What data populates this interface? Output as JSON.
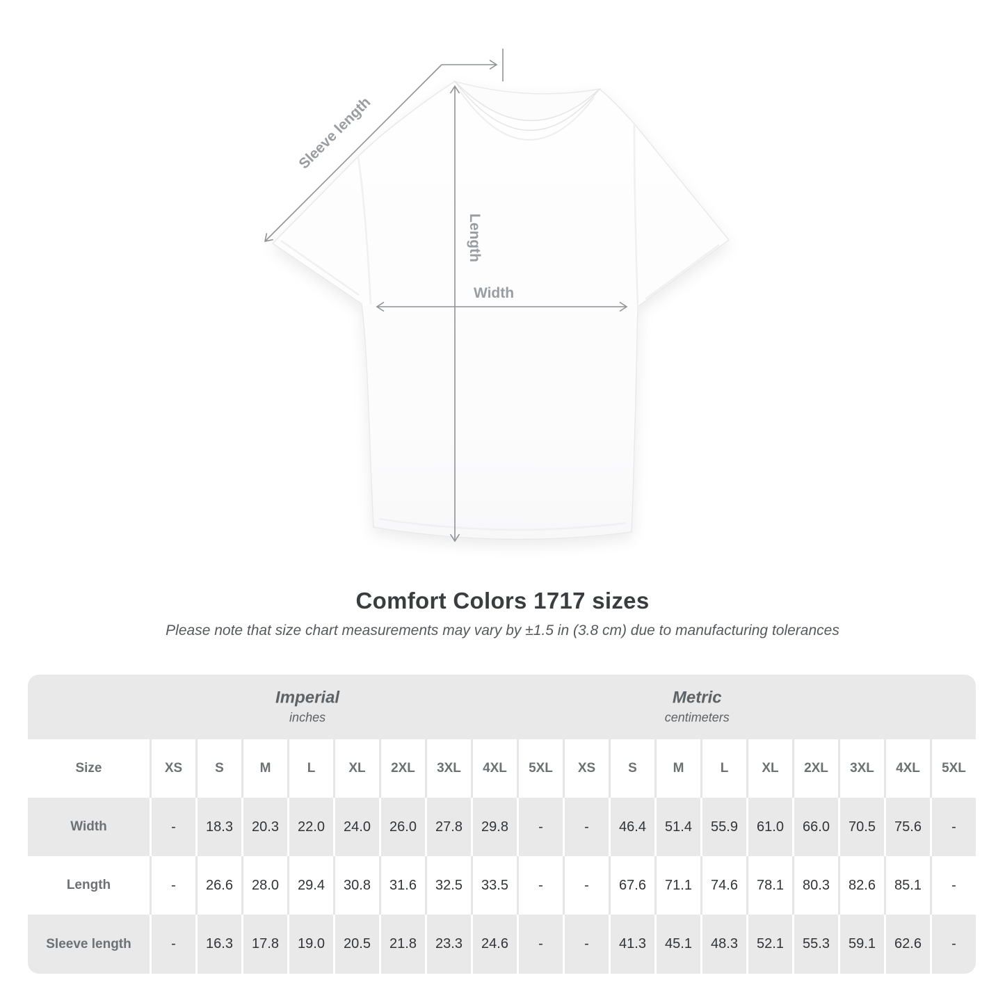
{
  "shirt_diagram": {
    "labels": {
      "sleeve_length": "Sleeve length",
      "length": "Length",
      "width": "Width"
    }
  },
  "heading": {
    "title": "Comfort Colors 1717 sizes",
    "subtitle": "Please note that size chart measurements may vary by ±1.5 in (3.8 cm) due to manufacturing tolerances"
  },
  "size_table": {
    "corner_label": "Size",
    "unit_groups": [
      {
        "name": "Imperial",
        "unit": "inches"
      },
      {
        "name": "Metric",
        "unit": "centimeters"
      }
    ],
    "sizes": [
      "XS",
      "S",
      "M",
      "L",
      "XL",
      "2XL",
      "3XL",
      "4XL",
      "5XL"
    ],
    "rows": [
      {
        "label": "Width",
        "imperial": [
          "-",
          "18.3",
          "20.3",
          "22.0",
          "24.0",
          "26.0",
          "27.8",
          "29.8",
          "-"
        ],
        "metric": [
          "-",
          "46.4",
          "51.4",
          "55.9",
          "61.0",
          "66.0",
          "70.5",
          "75.6",
          "-"
        ]
      },
      {
        "label": "Length",
        "imperial": [
          "-",
          "26.6",
          "28.0",
          "29.4",
          "30.8",
          "31.6",
          "32.5",
          "33.5",
          "-"
        ],
        "metric": [
          "-",
          "67.6",
          "71.1",
          "74.6",
          "78.1",
          "80.3",
          "82.6",
          "85.1",
          "-"
        ]
      },
      {
        "label": "Sleeve length",
        "imperial": [
          "-",
          "16.3",
          "17.8",
          "19.0",
          "20.5",
          "21.8",
          "23.3",
          "24.6",
          "-"
        ],
        "metric": [
          "-",
          "41.3",
          "45.1",
          "48.3",
          "52.1",
          "55.3",
          "59.1",
          "62.6",
          "-"
        ]
      }
    ]
  },
  "colors": {
    "band_gray": "#e9e9ea",
    "separator_gray": "#e6e6e7",
    "header_text_gray": "#6c7175",
    "value_text": "#313437",
    "measure_line_gray": "#8e9296",
    "measure_label_gray": "#989da1"
  }
}
